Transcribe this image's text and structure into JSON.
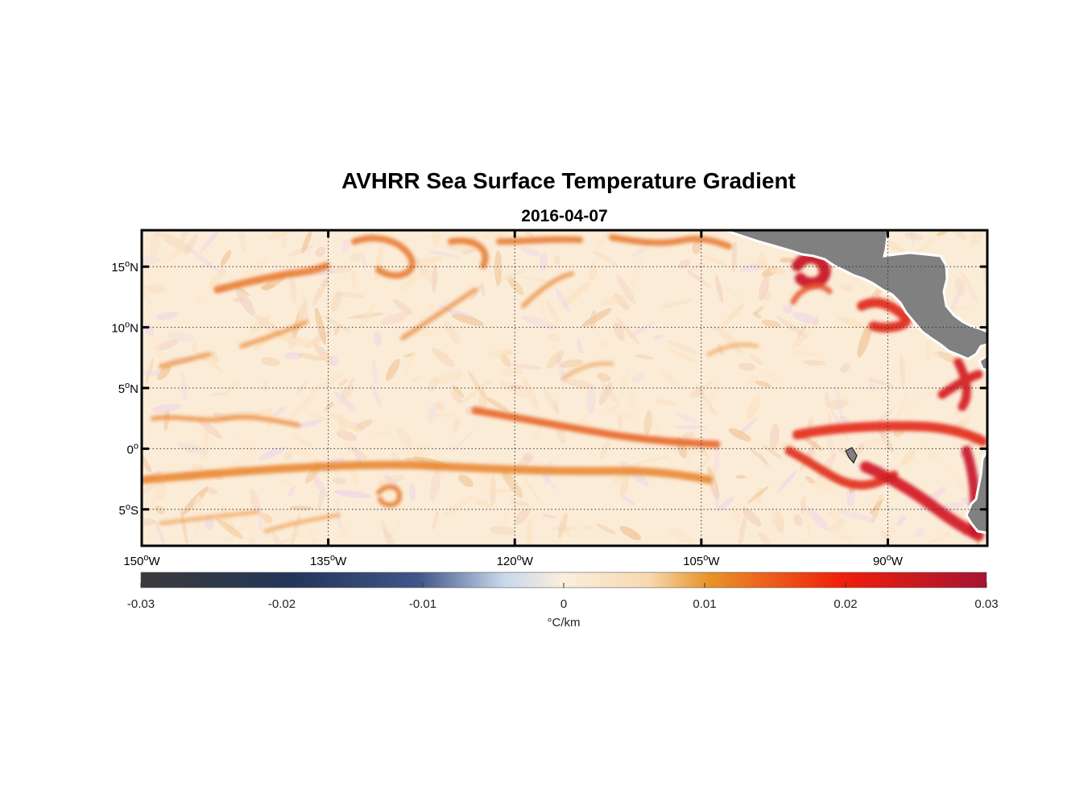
{
  "title": "AVHRR Sea Surface Temperature Gradient",
  "subtitle": "2016-04-07",
  "map": {
    "lon_range": [
      -150,
      -82
    ],
    "lat_range": [
      -8,
      18
    ],
    "lon_ticks": [
      {
        "value": -150,
        "num": "150",
        "hemi": "W"
      },
      {
        "value": -135,
        "num": "135",
        "hemi": "W"
      },
      {
        "value": -120,
        "num": "120",
        "hemi": "W"
      },
      {
        "value": -105,
        "num": "105",
        "hemi": "W"
      },
      {
        "value": -90,
        "num": "90",
        "hemi": "W"
      }
    ],
    "lat_ticks": [
      {
        "value": 15,
        "num": "15",
        "hemi": "N"
      },
      {
        "value": 10,
        "num": "10",
        "hemi": "N"
      },
      {
        "value": 5,
        "num": "5",
        "hemi": "N"
      },
      {
        "value": 0,
        "num": "0",
        "hemi": ""
      },
      {
        "value": -5,
        "num": "5",
        "hemi": "S"
      }
    ],
    "degree_symbol": "o",
    "grid": "dotted",
    "land_color": "#808080",
    "background_color": "#fbecd8"
  },
  "colorbar": {
    "range": [
      -0.03,
      0.03
    ],
    "ticks": [
      {
        "value": -0.03,
        "label": "-0.03"
      },
      {
        "value": -0.02,
        "label": "-0.02"
      },
      {
        "value": -0.01,
        "label": "-0.01"
      },
      {
        "value": 0,
        "label": "0"
      },
      {
        "value": 0.01,
        "label": "0.01"
      },
      {
        "value": 0.02,
        "label": "0.02"
      },
      {
        "value": 0.03,
        "label": "0.03"
      }
    ],
    "unit_label": "°C/km",
    "colors": [
      "#3a3a3a",
      "#22365a",
      "#42578a",
      "#c9d9ec",
      "#fbeedc",
      "#e9942a",
      "#f01e0a",
      "#a51433"
    ]
  }
}
